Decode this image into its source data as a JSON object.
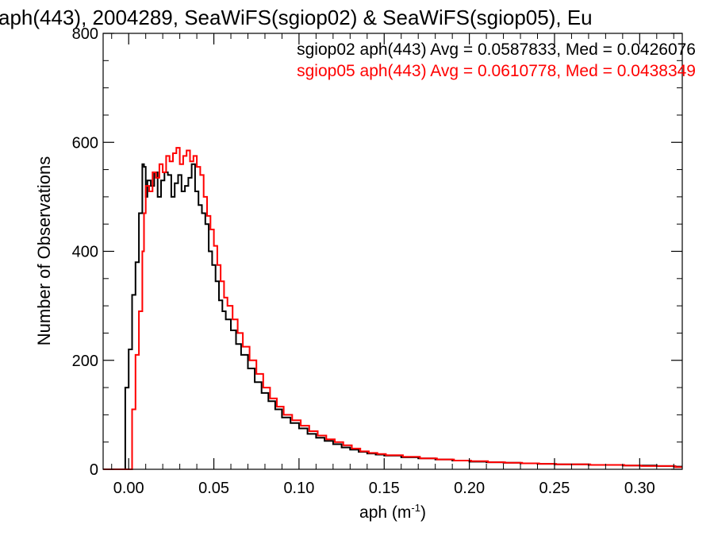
{
  "chart_data": {
    "type": "line",
    "title": "aph(443), 2004289, SeaWiFS(sgiop02) & SeaWiFS(sgiop05), Eu",
    "xlabel_main": "aph (m",
    "xlabel_sup": "-1",
    "xlabel_end": ")",
    "ylabel": "Number of Observations",
    "xlim": [
      -0.015,
      0.325
    ],
    "ylim": [
      0,
      800
    ],
    "x_ticks": [
      {
        "value": 0.0,
        "label": "0.00"
      },
      {
        "value": 0.05,
        "label": "0.05"
      },
      {
        "value": 0.1,
        "label": "0.10"
      },
      {
        "value": 0.15,
        "label": "0.15"
      },
      {
        "value": 0.2,
        "label": "0.20"
      },
      {
        "value": 0.25,
        "label": "0.25"
      },
      {
        "value": 0.3,
        "label": "0.30"
      }
    ],
    "y_ticks": [
      {
        "value": 0,
        "label": "0"
      },
      {
        "value": 200,
        "label": "200"
      },
      {
        "value": 400,
        "label": "400"
      },
      {
        "value": 600,
        "label": "600"
      },
      {
        "value": 800,
        "label": "800"
      }
    ],
    "legend": [
      {
        "text": "sgiop02 aph(443) Avg = 0.0587833, Med = 0.0426076",
        "color": "#000000"
      },
      {
        "text": "sgiop05 aph(443) Avg = 0.0610778, Med = 0.0438349",
        "color": "#ff0000"
      }
    ],
    "legend_position": "top-right",
    "step": "histogram",
    "series": [
      {
        "color": "#000000",
        "x": [
          -0.015,
          -0.003,
          -0.002,
          0.0,
          0.002,
          0.004,
          0.006,
          0.008,
          0.009,
          0.01,
          0.011,
          0.013,
          0.015,
          0.017,
          0.019,
          0.021,
          0.023,
          0.025,
          0.027,
          0.029,
          0.031,
          0.033,
          0.035,
          0.037,
          0.039,
          0.041,
          0.043,
          0.045,
          0.047,
          0.049,
          0.051,
          0.053,
          0.055,
          0.057,
          0.06,
          0.063,
          0.066,
          0.07,
          0.074,
          0.078,
          0.082,
          0.086,
          0.09,
          0.095,
          0.1,
          0.105,
          0.11,
          0.115,
          0.12,
          0.125,
          0.13,
          0.135,
          0.14,
          0.145,
          0.15,
          0.16,
          0.17,
          0.18,
          0.19,
          0.2,
          0.21,
          0.22,
          0.23,
          0.24,
          0.25,
          0.26,
          0.27,
          0.28,
          0.29,
          0.3,
          0.31,
          0.32,
          0.325
        ],
        "y": [
          0,
          0,
          150,
          220,
          320,
          380,
          470,
          560,
          555,
          500,
          530,
          520,
          545,
          500,
          530,
          545,
          540,
          500,
          525,
          540,
          510,
          520,
          535,
          560,
          510,
          485,
          470,
          450,
          400,
          375,
          345,
          310,
          290,
          275,
          255,
          230,
          210,
          185,
          160,
          140,
          125,
          110,
          95,
          85,
          75,
          65,
          58,
          52,
          46,
          40,
          36,
          32,
          29,
          27,
          25,
          22,
          20,
          18,
          16,
          14,
          13,
          12,
          11,
          10,
          9,
          9,
          8,
          8,
          7,
          7,
          6,
          5,
          5
        ]
      },
      {
        "color": "#ff0000",
        "x": [
          -0.015,
          0.001,
          0.002,
          0.004,
          0.006,
          0.008,
          0.009,
          0.01,
          0.012,
          0.014,
          0.016,
          0.018,
          0.02,
          0.022,
          0.024,
          0.026,
          0.028,
          0.03,
          0.032,
          0.034,
          0.036,
          0.038,
          0.04,
          0.042,
          0.044,
          0.046,
          0.048,
          0.05,
          0.052,
          0.054,
          0.056,
          0.058,
          0.061,
          0.064,
          0.067,
          0.071,
          0.075,
          0.079,
          0.083,
          0.087,
          0.091,
          0.096,
          0.101,
          0.106,
          0.111,
          0.116,
          0.121,
          0.126,
          0.131,
          0.136,
          0.141,
          0.146,
          0.151,
          0.161,
          0.171,
          0.181,
          0.191,
          0.201,
          0.211,
          0.221,
          0.231,
          0.241,
          0.251,
          0.261,
          0.271,
          0.281,
          0.291,
          0.301,
          0.311,
          0.321,
          0.325
        ],
        "y": [
          0,
          0,
          110,
          210,
          290,
          400,
          470,
          520,
          510,
          545,
          535,
          560,
          545,
          575,
          565,
          580,
          590,
          560,
          575,
          585,
          565,
          575,
          555,
          540,
          500,
          465,
          440,
          410,
          375,
          345,
          315,
          300,
          275,
          250,
          225,
          200,
          175,
          150,
          130,
          115,
          100,
          90,
          80,
          70,
          62,
          55,
          50,
          44,
          38,
          33,
          30,
          28,
          26,
          23,
          20,
          18,
          16,
          15,
          13,
          12,
          11,
          10,
          9,
          9,
          8,
          8,
          7,
          6,
          6,
          4,
          4
        ]
      }
    ]
  }
}
